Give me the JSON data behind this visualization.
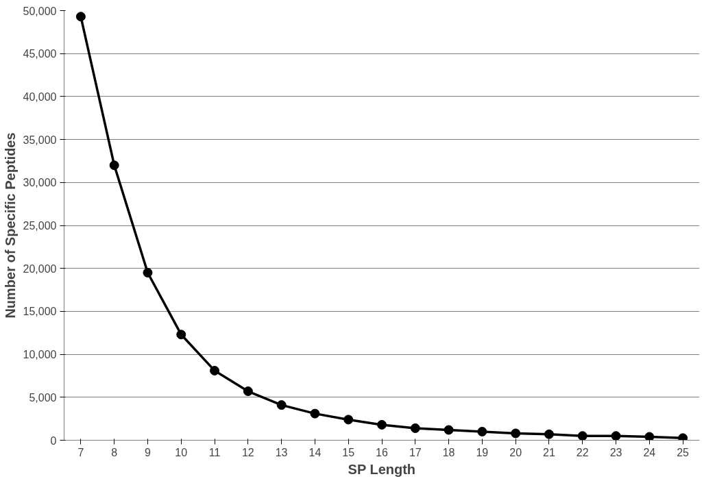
{
  "chart_data": {
    "type": "line",
    "xlabel": "SP Length",
    "ylabel": "Number of Specific Peptides",
    "categories": [
      "7",
      "8",
      "9",
      "10",
      "11",
      "12",
      "13",
      "14",
      "15",
      "16",
      "17",
      "18",
      "19",
      "20",
      "21",
      "22",
      "23",
      "24",
      "25"
    ],
    "series": [
      {
        "color": "#000000",
        "values": [
          49300,
          32000,
          19500,
          12300,
          8100,
          5700,
          4100,
          3100,
          2400,
          1800,
          1400,
          1200,
          1000,
          800,
          700,
          500,
          500,
          400,
          250
        ]
      }
    ],
    "ylim": [
      0,
      50000
    ],
    "yticks": [
      {
        "value": 0,
        "label": "0"
      },
      {
        "value": 5000,
        "label": "5,000"
      },
      {
        "value": 10000,
        "label": "10,000"
      },
      {
        "value": 15000,
        "label": "15,000"
      },
      {
        "value": 20000,
        "label": "20,000"
      },
      {
        "value": 25000,
        "label": "25,000"
      },
      {
        "value": 30000,
        "label": "30,000"
      },
      {
        "value": 35000,
        "label": "35,000"
      },
      {
        "value": 40000,
        "label": "40,000"
      },
      {
        "value": 45000,
        "label": "45,000"
      },
      {
        "value": 50000,
        "label": "50,000"
      }
    ],
    "grid": "y",
    "marker": "circle",
    "line_style": "solid"
  }
}
